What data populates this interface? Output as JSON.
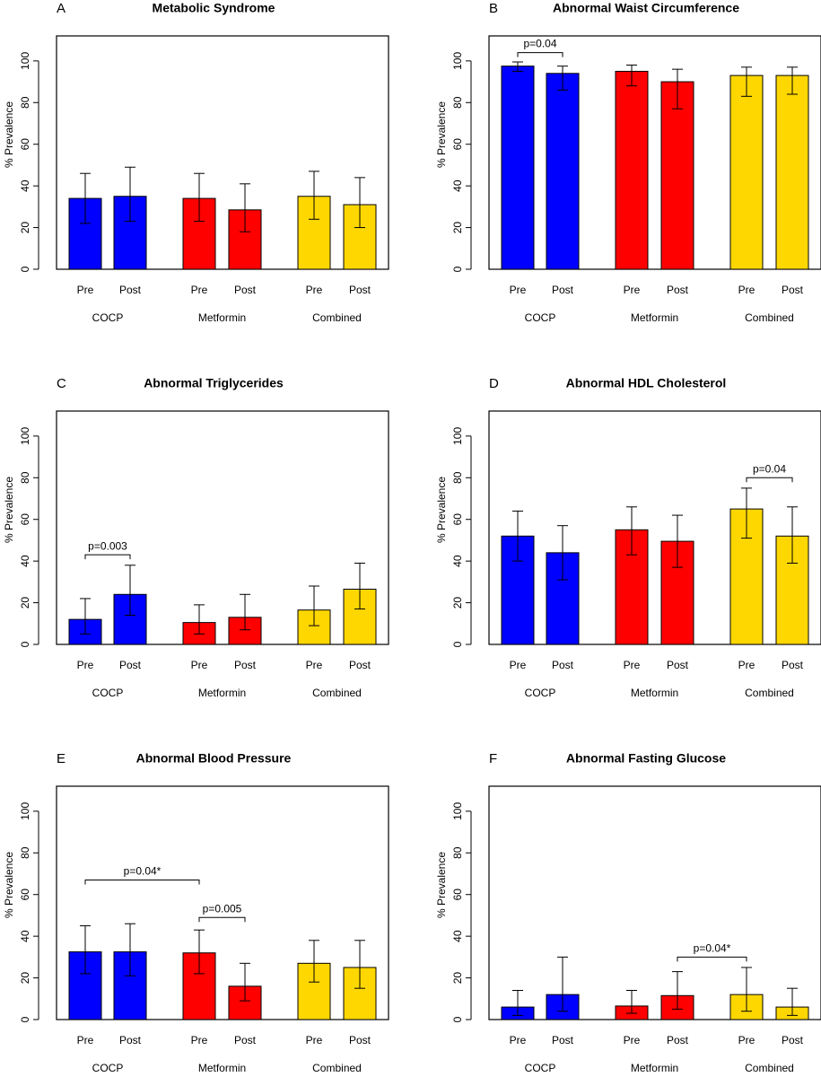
{
  "chart_data": [
    {
      "type": "bar",
      "panel": "A",
      "title": "Metabolic Syndrome",
      "ylabel": "% Prevalence",
      "categories": [
        "Pre",
        "Post"
      ],
      "ylim": [
        0,
        112
      ],
      "yticks": [
        0,
        20,
        40,
        60,
        80,
        100
      ],
      "series": [
        {
          "name": "COCP",
          "color": "#0000ff",
          "values": [
            34,
            35
          ],
          "lower": [
            22,
            23
          ],
          "upper": [
            46,
            49
          ]
        },
        {
          "name": "Metformin",
          "color": "#ff0000",
          "values": [
            34,
            28.5
          ],
          "lower": [
            23,
            18
          ],
          "upper": [
            46,
            41
          ]
        },
        {
          "name": "Combined",
          "color": "#ffd700",
          "values": [
            35,
            31
          ],
          "lower": [
            24,
            20
          ],
          "upper": [
            47,
            44
          ]
        }
      ],
      "annotations": []
    },
    {
      "type": "bar",
      "panel": "B",
      "title": "Abnormal Waist Circumference",
      "ylabel": "% Prevalence",
      "categories": [
        "Pre",
        "Post"
      ],
      "ylim": [
        0,
        112
      ],
      "yticks": [
        0,
        20,
        40,
        60,
        80,
        100
      ],
      "series": [
        {
          "name": "COCP",
          "color": "#0000ff",
          "values": [
            97.5,
            94
          ],
          "lower": [
            95,
            86
          ],
          "upper": [
            99.5,
            97.5
          ]
        },
        {
          "name": "Metformin",
          "color": "#ff0000",
          "values": [
            95,
            90
          ],
          "lower": [
            88,
            77
          ],
          "upper": [
            98,
            96
          ]
        },
        {
          "name": "Combined",
          "color": "#ffd700",
          "values": [
            93,
            93
          ],
          "lower": [
            83,
            84
          ],
          "upper": [
            97,
            97
          ]
        }
      ],
      "annotations": [
        {
          "text": "p=0.04",
          "between": [
            0,
            1
          ],
          "y": 104
        }
      ]
    },
    {
      "type": "bar",
      "panel": "C",
      "title": "Abnormal Triglycerides",
      "ylabel": "% Prevalence",
      "categories": [
        "Pre",
        "Post"
      ],
      "ylim": [
        0,
        112
      ],
      "yticks": [
        0,
        20,
        40,
        60,
        80,
        100
      ],
      "series": [
        {
          "name": "COCP",
          "color": "#0000ff",
          "values": [
            12,
            24
          ],
          "lower": [
            5,
            14
          ],
          "upper": [
            22,
            38
          ]
        },
        {
          "name": "Metformin",
          "color": "#ff0000",
          "values": [
            10.5,
            13
          ],
          "lower": [
            5,
            7
          ],
          "upper": [
            19,
            24
          ]
        },
        {
          "name": "Combined",
          "color": "#ffd700",
          "values": [
            16.5,
            26.5
          ],
          "lower": [
            9,
            17
          ],
          "upper": [
            28,
            39
          ]
        }
      ],
      "annotations": [
        {
          "text": "p=0.003",
          "between": [
            0,
            1
          ],
          "y": 43
        }
      ]
    },
    {
      "type": "bar",
      "panel": "D",
      "title": "Abnormal HDL Cholesterol",
      "ylabel": "% Prevalence",
      "categories": [
        "Pre",
        "Post"
      ],
      "ylim": [
        0,
        112
      ],
      "yticks": [
        0,
        20,
        40,
        60,
        80,
        100
      ],
      "series": [
        {
          "name": "COCP",
          "color": "#0000ff",
          "values": [
            52,
            44
          ],
          "lower": [
            40,
            31
          ],
          "upper": [
            64,
            57
          ]
        },
        {
          "name": "Metformin",
          "color": "#ff0000",
          "values": [
            55,
            49.5
          ],
          "lower": [
            43,
            37
          ],
          "upper": [
            66,
            62
          ]
        },
        {
          "name": "Combined",
          "color": "#ffd700",
          "values": [
            65,
            52
          ],
          "lower": [
            51,
            39
          ],
          "upper": [
            75,
            66
          ]
        }
      ],
      "annotations": [
        {
          "text": "p=0.04",
          "between": [
            4,
            5
          ],
          "y": 80
        }
      ]
    },
    {
      "type": "bar",
      "panel": "E",
      "title": "Abnormal Blood Pressure",
      "ylabel": "% Prevalence",
      "categories": [
        "Pre",
        "Post"
      ],
      "ylim": [
        0,
        112
      ],
      "yticks": [
        0,
        20,
        40,
        60,
        80,
        100
      ],
      "series": [
        {
          "name": "COCP",
          "color": "#0000ff",
          "values": [
            32.5,
            32.5
          ],
          "lower": [
            22,
            21
          ],
          "upper": [
            45,
            46
          ]
        },
        {
          "name": "Metformin",
          "color": "#ff0000",
          "values": [
            32,
            16
          ],
          "lower": [
            22,
            9
          ],
          "upper": [
            43,
            27
          ]
        },
        {
          "name": "Combined",
          "color": "#ffd700",
          "values": [
            27,
            25
          ],
          "lower": [
            18,
            15
          ],
          "upper": [
            38,
            38
          ]
        }
      ],
      "annotations": [
        {
          "text": "p=0.04*",
          "between": [
            0,
            2
          ],
          "y": 67
        },
        {
          "text": "p=0.005",
          "between": [
            2,
            3
          ],
          "y": 49
        }
      ]
    },
    {
      "type": "bar",
      "panel": "F",
      "title": "Abnormal Fasting Glucose",
      "ylabel": "% Prevalence",
      "categories": [
        "Pre",
        "Post"
      ],
      "ylim": [
        0,
        112
      ],
      "yticks": [
        0,
        20,
        40,
        60,
        80,
        100
      ],
      "series": [
        {
          "name": "COCP",
          "color": "#0000ff",
          "values": [
            6,
            12
          ],
          "lower": [
            2,
            4
          ],
          "upper": [
            14,
            30
          ]
        },
        {
          "name": "Metformin",
          "color": "#ff0000",
          "values": [
            6.5,
            11.5
          ],
          "lower": [
            3,
            5
          ],
          "upper": [
            14,
            23
          ]
        },
        {
          "name": "Combined",
          "color": "#ffd700",
          "values": [
            12,
            6
          ],
          "lower": [
            4,
            2
          ],
          "upper": [
            25,
            15
          ]
        }
      ],
      "annotations": [
        {
          "text": "p=0.04*",
          "between": [
            3,
            4
          ],
          "y": 30
        }
      ]
    }
  ]
}
